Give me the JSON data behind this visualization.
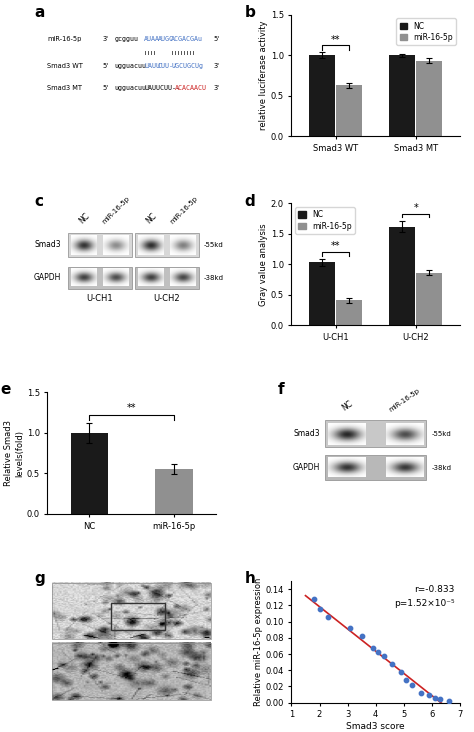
{
  "panel_b": {
    "groups": [
      "Smad3 WT",
      "Smad3 MT"
    ],
    "nc_values": [
      1.0,
      1.0
    ],
    "mir_values": [
      0.63,
      0.93
    ],
    "nc_err": [
      0.04,
      0.02
    ],
    "mir_err": [
      0.03,
      0.03
    ],
    "ylabel": "relative luciferase activity",
    "ylim": [
      0,
      1.5
    ],
    "yticks": [
      0.0,
      0.5,
      1.0,
      1.5
    ],
    "sig_wt": "**",
    "nc_color": "#1a1a1a",
    "mir_color": "#909090"
  },
  "panel_d": {
    "groups": [
      "U-CH1",
      "U-CH2"
    ],
    "nc_values": [
      1.03,
      1.62
    ],
    "mir_values": [
      0.41,
      0.86
    ],
    "nc_err": [
      0.06,
      0.09
    ],
    "mir_err": [
      0.04,
      0.04
    ],
    "ylabel": "Gray value analysis",
    "ylim": [
      0,
      2.0
    ],
    "yticks": [
      0.0,
      0.5,
      1.0,
      1.5,
      2.0
    ],
    "sig_uch1": "**",
    "sig_uch2": "*",
    "nc_color": "#1a1a1a",
    "mir_color": "#909090"
  },
  "panel_e": {
    "categories": [
      "NC",
      "miR-16-5p"
    ],
    "values": [
      1.0,
      0.55
    ],
    "errors": [
      0.12,
      0.06
    ],
    "ylabel": "Relative Smad3\nlevels(fold)",
    "ylim": [
      0,
      1.5
    ],
    "yticks": [
      0.0,
      0.5,
      1.0,
      1.5
    ],
    "sig": "**",
    "nc_color": "#1a1a1a",
    "mir_color": "#909090"
  },
  "panel_h": {
    "x": [
      1.8,
      2.0,
      2.3,
      3.1,
      3.5,
      3.9,
      4.1,
      4.3,
      4.6,
      4.9,
      5.1,
      5.3,
      5.6,
      5.9,
      6.1,
      6.3,
      6.6
    ],
    "y": [
      0.128,
      0.115,
      0.105,
      0.092,
      0.082,
      0.068,
      0.062,
      0.058,
      0.048,
      0.038,
      0.028,
      0.022,
      0.012,
      0.009,
      0.006,
      0.004,
      0.002
    ],
    "xlabel": "Smad3 score",
    "ylabel": "Relative miR-16-5p expression",
    "xlim": [
      1,
      7
    ],
    "ylim": [
      0,
      0.15
    ],
    "yticks": [
      0.0,
      0.02,
      0.04,
      0.06,
      0.08,
      0.1,
      0.12,
      0.14
    ],
    "xticks": [
      1,
      2,
      3,
      4,
      5,
      6,
      7
    ],
    "annotation_r": "r=-0.833",
    "annotation_p": "p=1.52×10⁻⁵",
    "line_color": "#cc2222",
    "dot_color": "#4472c4"
  }
}
